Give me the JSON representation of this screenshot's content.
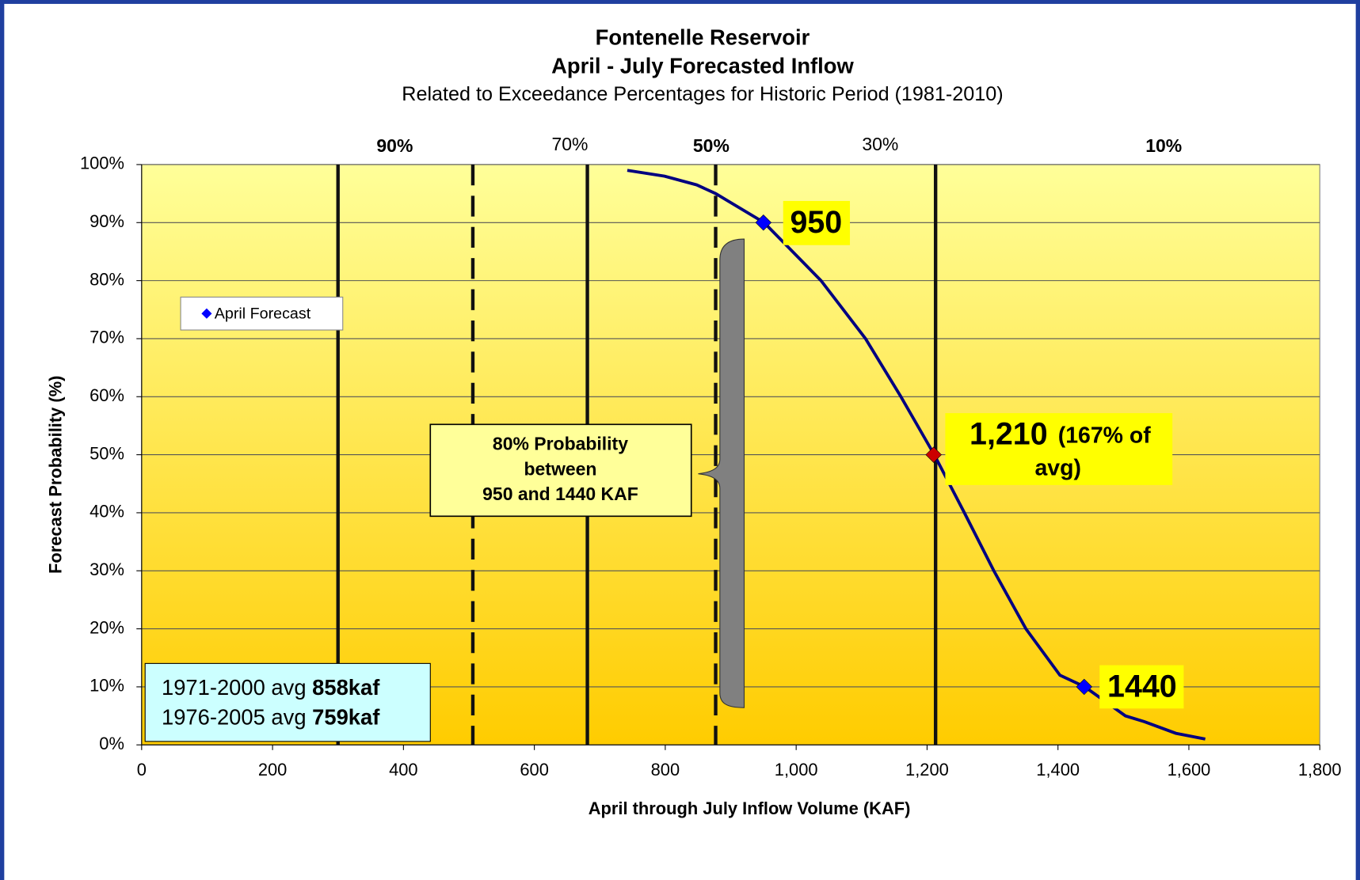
{
  "chart_data": {
    "type": "line",
    "title": "Fontenelle Reservoir",
    "title2": "April - July Forecasted Inflow",
    "subtitle": "Related to Exceedance Percentages for Historic Period (1981-2010)",
    "xlabel": "April through July Inflow Volume (KAF)",
    "ylabel": "Forecast Probability (%)",
    "xlim": [
      0,
      1800
    ],
    "ylim": [
      0,
      100
    ],
    "xticks": [
      0,
      200,
      400,
      600,
      800,
      {
        "value": 1000,
        "label": "1,000"
      },
      {
        "value": 1200,
        "label": "1,200"
      },
      {
        "value": 1400,
        "label": "1,400"
      },
      {
        "value": 1600,
        "label": "1,600"
      },
      {
        "value": 1800,
        "label": "1,800"
      }
    ],
    "yticks": [
      {
        "value": 0,
        "label": "0%"
      },
      {
        "value": 10,
        "label": "10%"
      },
      {
        "value": 20,
        "label": "20%"
      },
      {
        "value": 30,
        "label": "30%"
      },
      {
        "value": 40,
        "label": "40%"
      },
      {
        "value": 50,
        "label": "50%"
      },
      {
        "value": 60,
        "label": "60%"
      },
      {
        "value": 70,
        "label": "70%"
      },
      {
        "value": 80,
        "label": "80%"
      },
      {
        "value": 90,
        "label": "90%"
      },
      {
        "value": 100,
        "label": "100%"
      }
    ],
    "grid": true,
    "curve": {
      "color": "#000080",
      "x": [
        742,
        799,
        848,
        877,
        951,
        1038,
        1106,
        1160,
        1211,
        1257,
        1302,
        1351,
        1403,
        1441,
        1503,
        1532,
        1580,
        1625
      ],
      "values": [
        99,
        98,
        96.5,
        95,
        90,
        80,
        70,
        60,
        50,
        40,
        30,
        20,
        12,
        10,
        5,
        4,
        2,
        1
      ]
    },
    "series": [
      {
        "name": "April Forecast",
        "color": "#0000ff",
        "colors": [
          "#0000ff",
          "#cc0000",
          "#0000ff"
        ],
        "x": [
          950,
          1210,
          1440
        ],
        "values": [
          90,
          50,
          10
        ]
      }
    ],
    "legend": "left",
    "reference_lines": [
      {
        "x": 300,
        "style": "solid"
      },
      {
        "x": 506,
        "style": "dashed"
      },
      {
        "x": 681,
        "style": "solid"
      },
      {
        "x": 877,
        "style": "dashed"
      },
      {
        "x": 1213,
        "style": "solid"
      }
    ],
    "exceedance_labels": [
      "90%",
      "70%",
      "50%",
      "30%",
      "10%"
    ],
    "annotations": {
      "p90": "950",
      "p50": "1,210",
      "p50_note": "(167% of",
      "p50_note2": "avg)",
      "p10": "1440",
      "range": [
        "80% Probability",
        "between",
        "950 and 1440 KAF"
      ],
      "avg1": "1971-2000 avg ",
      "avg1_value": "858kaf",
      "avg2": "1976-2005 avg ",
      "avg2_value": "759kaf"
    }
  }
}
